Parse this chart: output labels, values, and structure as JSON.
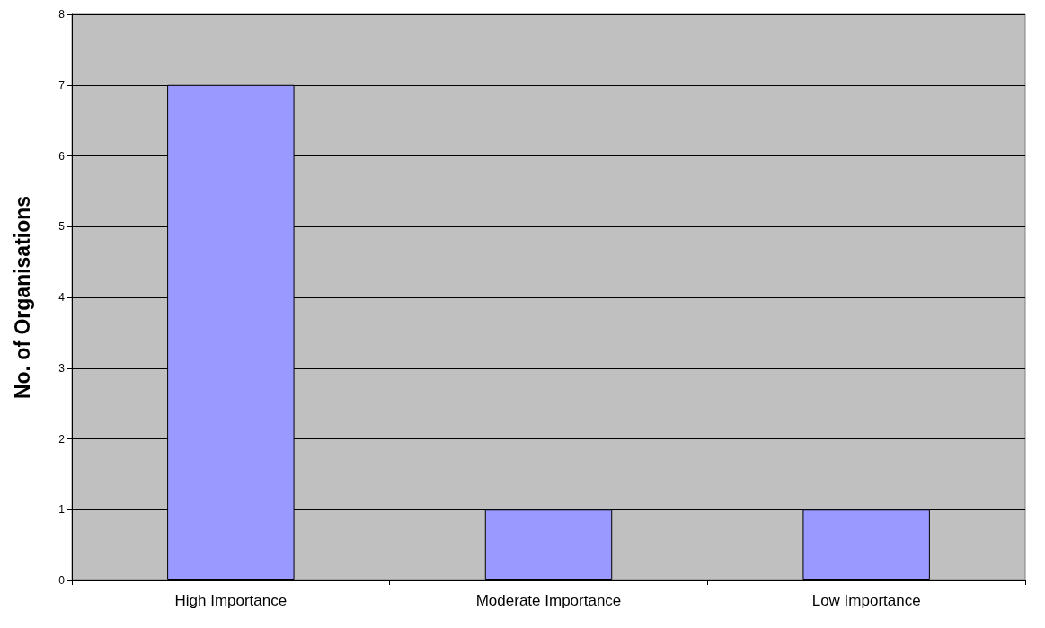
{
  "chart_data": {
    "type": "bar",
    "ylabel": "No. of Organisations",
    "categories": [
      "High Importance",
      "Moderate Importance",
      "Low Importance"
    ],
    "values": [
      7,
      1,
      1
    ],
    "color": "#9999ff",
    "ylim": [
      0,
      8
    ],
    "yticks": [
      0,
      1,
      2,
      3,
      4,
      5,
      6,
      7,
      8
    ],
    "grid": "y"
  }
}
